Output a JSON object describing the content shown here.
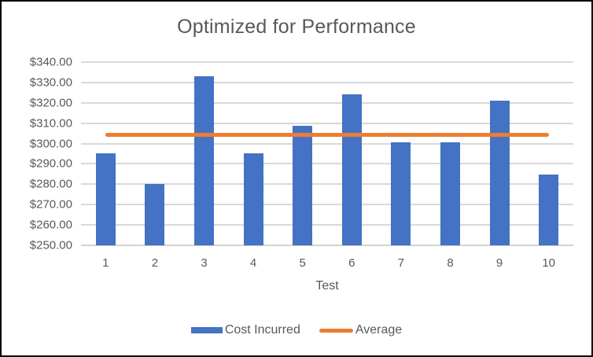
{
  "window": {
    "background": "#ffffff",
    "border_color": "#000000"
  },
  "chart_data": {
    "type": "bar",
    "title": "Optimized for Performance",
    "xlabel": "Test",
    "ylabel": "",
    "categories": [
      "1",
      "2",
      "3",
      "4",
      "5",
      "6",
      "7",
      "8",
      "9",
      "10"
    ],
    "series": [
      {
        "name": "Cost Incurred",
        "type": "bar",
        "color": "#4472C4",
        "values": [
          295.2,
          280.1,
          333.2,
          295.2,
          308.7,
          324.2,
          300.6,
          300.6,
          321.1,
          284.6
        ]
      },
      {
        "name": "Average",
        "type": "line",
        "color": "#ED7D31",
        "value": 304.4
      }
    ],
    "ylim": [
      250,
      340
    ],
    "y_ticks": [
      {
        "value": 340,
        "label": "$340.00"
      },
      {
        "value": 330,
        "label": "$330.00"
      },
      {
        "value": 320,
        "label": "$320.00"
      },
      {
        "value": 310,
        "label": "$310.00"
      },
      {
        "value": 300,
        "label": "$300.00"
      },
      {
        "value": 290,
        "label": "$290.00"
      },
      {
        "value": 280,
        "label": "$280.00"
      },
      {
        "value": 270,
        "label": "$270.00"
      },
      {
        "value": 260,
        "label": "$260.00"
      },
      {
        "value": 250,
        "label": "$250.00"
      }
    ],
    "grid": true,
    "gridline_color": "#D9D9D9",
    "text_color": "#595959",
    "legend_position": "bottom"
  }
}
